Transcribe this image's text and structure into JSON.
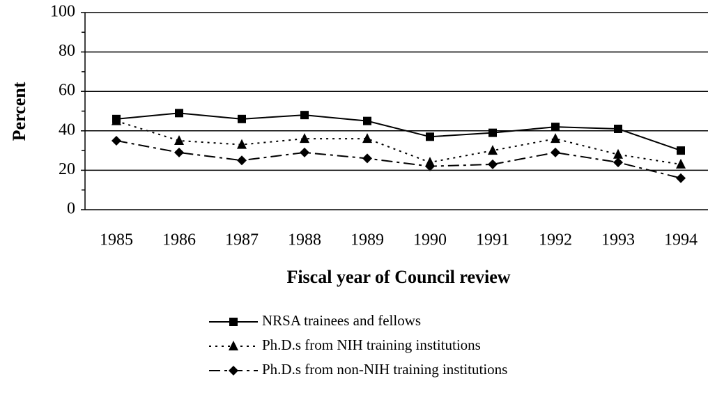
{
  "chart_data": {
    "type": "line",
    "x_label": "Fiscal year of Council review",
    "y_label": "Percent",
    "categories": [
      "1985",
      "1986",
      "1987",
      "1988",
      "1989",
      "1990",
      "1991",
      "1992",
      "1993",
      "1994"
    ],
    "series": [
      {
        "name": "NRSA trainees and fellows",
        "color": "#000000",
        "dash": "solid",
        "marker": "square",
        "values": [
          46,
          49,
          46,
          48,
          45,
          37,
          39,
          42,
          41,
          30
        ]
      },
      {
        "name": "Ph.D.s from NIH training institutions",
        "color": "#000000",
        "dash": "dotted",
        "marker": "triangle",
        "values": [
          45,
          35,
          33,
          36,
          36,
          24,
          30,
          36,
          28,
          23
        ]
      },
      {
        "name": "Ph.D.s from non-NIH training institutions",
        "color": "#000000",
        "dash": "dashdot",
        "marker": "diamond",
        "values": [
          35,
          29,
          25,
          29,
          26,
          22,
          23,
          29,
          24,
          16
        ]
      }
    ],
    "ylim": [
      0,
      100
    ],
    "yticks": [
      0,
      20,
      40,
      60,
      80,
      100
    ],
    "grid": true
  }
}
